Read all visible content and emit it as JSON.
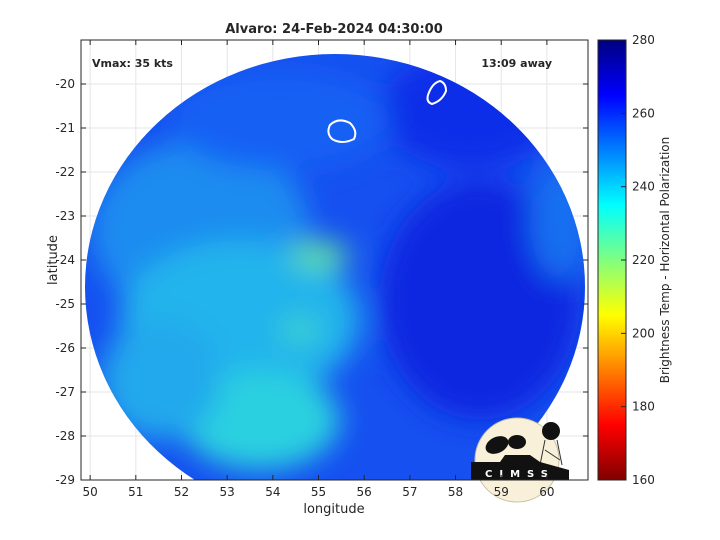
{
  "chart_data": {
    "type": "heatmap",
    "title": "Alvaro: 24-Feb-2024 04:30:00",
    "xlabel": "longitude",
    "ylabel": "latitude",
    "xlim": [
      49.8,
      60.9
    ],
    "ylim": [
      -29,
      -19
    ],
    "xticks": [
      50,
      51,
      52,
      53,
      54,
      55,
      56,
      57,
      58,
      59,
      60
    ],
    "yticks": [
      -20,
      -21,
      -22,
      -23,
      -24,
      -25,
      -26,
      -27,
      -28,
      -29
    ],
    "grid": true,
    "annotations": {
      "vmax": "Vmax: 35 kts",
      "time_away": "13:09 away"
    },
    "colorbar": {
      "label": "Brightness Temp - Horizontal Polarization",
      "range": [
        160,
        280
      ],
      "ticks": [
        160,
        180,
        200,
        220,
        240,
        260,
        280
      ],
      "colormap": "jet",
      "location": "right"
    },
    "contour_color": "#ffffff"
  },
  "logo": {
    "text": "CIMSS"
  }
}
